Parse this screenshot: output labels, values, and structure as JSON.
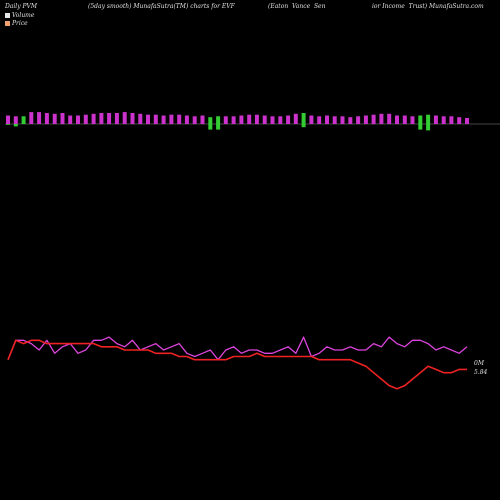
{
  "header": {
    "t1": "Daily PVM",
    "t2": "(5day smooth) MunafaSutra(TM) charts for EVF",
    "t3": "(Eaton  Vance  Sen",
    "t4": "ior Income  Trust) MunafaSutra.com"
  },
  "legend": [
    {
      "label": "Volume",
      "color": "#e8e8e8"
    },
    {
      "label": "Price",
      "color": "#f2a070"
    }
  ],
  "colors": {
    "up": "#cc33cc",
    "down": "#33cc33",
    "line_a": "#dd44dd",
    "line_b": "#ee2222",
    "zero": "#888888"
  },
  "chart_data": {
    "type": "bar",
    "x": [
      1,
      2,
      3,
      4,
      5,
      6,
      7,
      8,
      9,
      10,
      11,
      12,
      13,
      14,
      15,
      16,
      17,
      18,
      19,
      20,
      21,
      22,
      23,
      24,
      25,
      26,
      27,
      28,
      29,
      30,
      31,
      32,
      33,
      34,
      35,
      36,
      37,
      38,
      39,
      40,
      41,
      42,
      43,
      44,
      45,
      46,
      47,
      48,
      49,
      50,
      51,
      52,
      53,
      54,
      55,
      56,
      57,
      58,
      59,
      60
    ],
    "series": [
      {
        "values": [
          1.0,
          0.9,
          0.9,
          1.4,
          1.4,
          1.3,
          1.2,
          1.3,
          1.0,
          1.0,
          1.1,
          1.2,
          1.3,
          1.3,
          1.3,
          1.4,
          1.3,
          1.2,
          1.1,
          1.1,
          1.0,
          1.1,
          1.1,
          1.0,
          0.9,
          1.0,
          0.8,
          0.9,
          0.9,
          0.9,
          1.0,
          1.1,
          1.1,
          1.0,
          0.9,
          0.9,
          1.0,
          1.2,
          1.3,
          1.0,
          0.9,
          1.0,
          0.9,
          0.9,
          0.8,
          0.9,
          1.0,
          1.1,
          1.2,
          1.2,
          1.0,
          1.0,
          0.9,
          1.0,
          1.1,
          1.0,
          0.9,
          0.9,
          0.8,
          0.7
        ],
        "colors": [
          "up",
          "up",
          "down",
          "up",
          "up",
          "up",
          "up",
          "up",
          "up",
          "up",
          "up",
          "up",
          "up",
          "up",
          "up",
          "up",
          "up",
          "up",
          "up",
          "up",
          "up",
          "up",
          "up",
          "up",
          "up",
          "up",
          "down",
          "down",
          "up",
          "up",
          "up",
          "up",
          "up",
          "up",
          "up",
          "up",
          "up",
          "up",
          "down",
          "up",
          "up",
          "up",
          "up",
          "up",
          "up",
          "up",
          "up",
          "up",
          "up",
          "up",
          "up",
          "up",
          "up",
          "down",
          "down",
          "up",
          "up",
          "up",
          "up",
          "up"
        ]
      },
      {
        "values": [
          0.1,
          0.3,
          0.0,
          0.0,
          0.0,
          0.0,
          0.0,
          0.0,
          0.0,
          0.0,
          0.0,
          0.0,
          0.0,
          0.0,
          0.0,
          0.0,
          0.0,
          0.0,
          0.0,
          0.0,
          0.0,
          0.0,
          0.0,
          0.0,
          0.0,
          0.0,
          0.7,
          0.7,
          0.0,
          0.0,
          0.0,
          0.0,
          0.0,
          0.0,
          0.0,
          0.0,
          0.0,
          0.0,
          0.4,
          0.0,
          0.0,
          0.0,
          0.0,
          0.0,
          0.0,
          0.0,
          0.0,
          0.0,
          0.0,
          0.0,
          0.0,
          0.0,
          0.0,
          0.7,
          0.8,
          0.0,
          0.0,
          0.0,
          0.0,
          0.0
        ],
        "colors": [
          "down"
        ]
      },
      {
        "type": "line",
        "values": [
          5.94,
          6.0,
          6.0,
          5.99,
          5.97,
          6.0,
          5.96,
          5.98,
          5.99,
          5.96,
          5.97,
          6.0,
          6.0,
          6.01,
          5.99,
          5.98,
          6.0,
          5.97,
          5.98,
          5.99,
          5.97,
          5.98,
          5.99,
          5.96,
          5.95,
          5.96,
          5.97,
          5.94,
          5.97,
          5.98,
          5.96,
          5.97,
          5.97,
          5.96,
          5.96,
          5.97,
          5.98,
          5.96,
          6.01,
          5.95,
          5.96,
          5.98,
          5.97,
          5.97,
          5.98,
          5.97,
          5.97,
          5.99,
          5.98,
          6.01,
          5.99,
          5.98,
          6.0,
          6.0,
          5.99,
          5.97,
          5.98,
          5.97,
          5.96,
          5.98
        ],
        "role": "line_a"
      },
      {
        "type": "line",
        "values": [
          5.94,
          6.0,
          5.99,
          6.0,
          6.0,
          5.99,
          5.99,
          5.99,
          5.99,
          5.99,
          5.99,
          5.99,
          5.98,
          5.98,
          5.98,
          5.97,
          5.97,
          5.97,
          5.97,
          5.96,
          5.96,
          5.96,
          5.95,
          5.95,
          5.94,
          5.94,
          5.94,
          5.94,
          5.94,
          5.95,
          5.95,
          5.95,
          5.96,
          5.95,
          5.95,
          5.95,
          5.95,
          5.95,
          5.95,
          5.95,
          5.94,
          5.94,
          5.94,
          5.94,
          5.94,
          5.93,
          5.92,
          5.9,
          5.88,
          5.86,
          5.85,
          5.86,
          5.88,
          5.9,
          5.92,
          5.91,
          5.9,
          5.9,
          5.91,
          5.91
        ],
        "role": "line_b"
      }
    ],
    "labels": {
      "a": "0M",
      "b": "5.84"
    },
    "price_range": [
      5.8,
      6.1
    ]
  }
}
